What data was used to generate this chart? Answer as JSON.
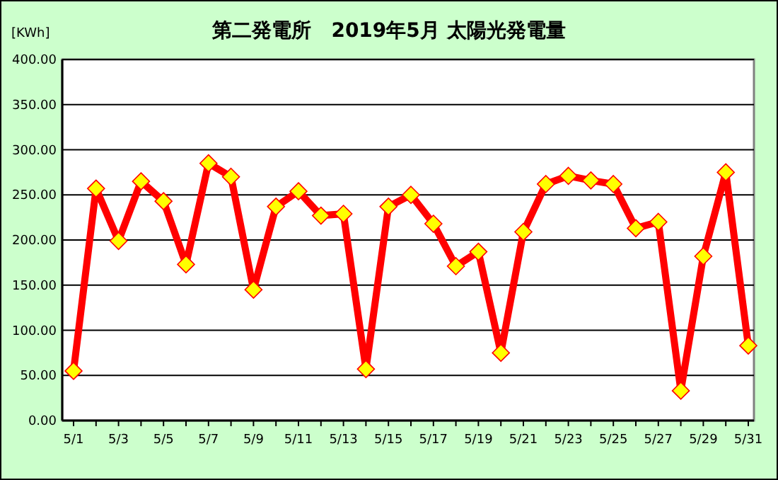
{
  "chart_data": {
    "type": "line",
    "title": "第二発電所　2019年5月 太陽光発電量",
    "ylabel": "[KWh]",
    "categories": [
      "5/1",
      null,
      "5/3",
      null,
      "5/5",
      null,
      "5/7",
      null,
      "5/9",
      null,
      "5/11",
      null,
      "5/13",
      null,
      "5/15",
      null,
      "5/17",
      null,
      "5/19",
      null,
      "5/21",
      null,
      "5/23",
      null,
      "5/25",
      null,
      "5/27",
      null,
      "5/29",
      null,
      "5/31"
    ],
    "series": [
      {
        "color": "#ff0000",
        "values": [
          55,
          257,
          199,
          265,
          243,
          173,
          285,
          270,
          145,
          237,
          254,
          227,
          229,
          57,
          237,
          250,
          218,
          171,
          187,
          75,
          209,
          262,
          271,
          266,
          262,
          213,
          220,
          33,
          182,
          275,
          83
        ]
      }
    ],
    "ylim": [
      0,
      400
    ],
    "yticks": [
      {
        "value": 0,
        "label": "0.00"
      },
      {
        "value": 50,
        "label": "50.00"
      },
      {
        "value": 100,
        "label": "100.00"
      },
      {
        "value": 150,
        "label": "150.00"
      },
      {
        "value": 200,
        "label": "200.00"
      },
      {
        "value": 250,
        "label": "250.00"
      },
      {
        "value": 300,
        "label": "300.00"
      },
      {
        "value": 350,
        "label": "350.00"
      },
      {
        "value": 400,
        "label": "400.00"
      }
    ],
    "grid": "y",
    "marker": "diamond",
    "line_style": "solid"
  }
}
